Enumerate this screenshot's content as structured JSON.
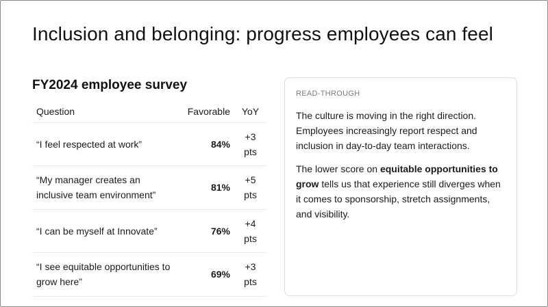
{
  "title": "Inclusion and belonging: progress employees can feel",
  "subtitle": "FY2024 employee survey",
  "table": {
    "headers": {
      "question": "Question",
      "favorable": "Favorable",
      "yoy": "YoY"
    },
    "rows": [
      {
        "question": "“I feel respected at work”",
        "favorable": "84%",
        "yoy": "+3 pts"
      },
      {
        "question": "“My manager creates an inclusive team environment”",
        "favorable": "81%",
        "yoy": "+5 pts"
      },
      {
        "question": "“I can be myself at Innovate”",
        "favorable": "76%",
        "yoy": "+4 pts"
      },
      {
        "question": "“I see equitable opportunities to grow here”",
        "favorable": "69%",
        "yoy": "+3 pts"
      }
    ]
  },
  "panel": {
    "eyebrow": "READ-THROUGH",
    "para1": "The culture is moving in the right direction. Employees increasingly report respect and inclusion in day-to-day team interactions.",
    "para2_pre": "The lower score on ",
    "para2_bold": "equitable opportunities to grow",
    "para2_post": " tells us that experience still diverges when it comes to sponsorship, stretch assignments, and visibility."
  }
}
